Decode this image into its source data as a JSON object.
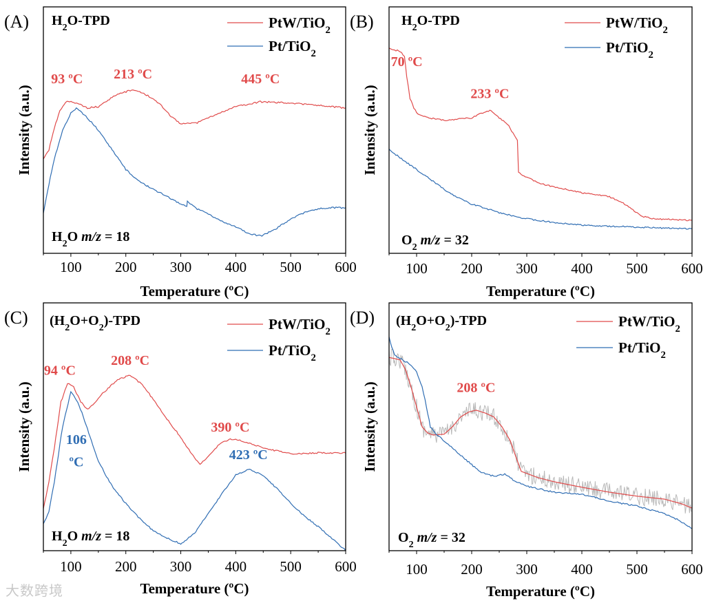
{
  "colors": {
    "ptw": "#e04a4a",
    "pt": "#2f6db3",
    "raw": "#b8b8b8",
    "axis": "#000000"
  },
  "watermark": "大数跨境",
  "chart_data": [
    {
      "type": "line",
      "panel": "(A)",
      "title": [
        {
          "t": "H"
        },
        {
          "t": "2",
          "sub": true
        },
        {
          "t": "O-TPD"
        }
      ],
      "note": [
        {
          "t": "H"
        },
        {
          "t": "2",
          "sub": true
        },
        {
          "t": "O "
        },
        {
          "t": "m/z",
          "i": true
        },
        {
          "t": " = 18"
        }
      ],
      "xlabel": "Temperature (ºC)",
      "ylabel": "Intensity (a.u.)",
      "xlim": [
        50,
        600
      ],
      "ylim": [
        0,
        100
      ],
      "xticks": [
        100,
        200,
        300,
        400,
        500,
        600
      ],
      "legend": [
        {
          "label": [
            {
              "t": "PtW/TiO"
            },
            {
              "t": "2",
              "sub": true
            }
          ],
          "series": "ptw"
        },
        {
          "label": [
            {
              "t": "Pt/TiO"
            },
            {
              "t": "2",
              "sub": true
            }
          ],
          "series": "pt"
        }
      ],
      "series": [
        {
          "name": "PtW/TiO2",
          "key": "ptw",
          "x": [
            50,
            60,
            70,
            80,
            93,
            110,
            130,
            150,
            180,
            213,
            240,
            260,
            280,
            300,
            330,
            360,
            400,
            445,
            500,
            550,
            600
          ],
          "y": [
            38,
            42,
            51,
            58,
            62,
            61,
            59,
            59.5,
            64,
            66.5,
            64,
            61,
            56,
            52.5,
            53,
            56,
            59.5,
            61.5,
            61,
            60,
            59
          ]
        },
        {
          "name": "Pt/TiO2",
          "key": "pt",
          "x": [
            50,
            60,
            70,
            85,
            100,
            110,
            130,
            150,
            175,
            200,
            225,
            250,
            275,
            300,
            311,
            312,
            330,
            350,
            375,
            400,
            425,
            445,
            470,
            500,
            525,
            550,
            575,
            600
          ],
          "y": [
            16,
            28,
            38.5,
            50,
            57,
            59,
            55,
            50,
            42,
            34,
            29,
            26,
            23,
            20,
            19,
            21,
            18,
            16,
            13,
            10.6,
            8,
            7,
            9.5,
            14,
            16.5,
            18,
            18.5,
            18.5
          ]
        }
      ],
      "annotations": [
        {
          "text": "93 ºC",
          "x": 93,
          "y": 69,
          "series": "ptw"
        },
        {
          "text": "213 ºC",
          "x": 213,
          "y": 71,
          "series": "ptw"
        },
        {
          "text": "445 ºC",
          "x": 445,
          "y": 69,
          "series": "ptw"
        }
      ]
    },
    {
      "type": "line",
      "panel": "(B)",
      "title": [
        {
          "t": "H"
        },
        {
          "t": "2",
          "sub": true
        },
        {
          "t": "O-TPD"
        }
      ],
      "note": [
        {
          "t": "O"
        },
        {
          "t": "2",
          "sub": true
        },
        {
          "t": " "
        },
        {
          "t": "m/z",
          "i": true
        },
        {
          "t": " = 32"
        }
      ],
      "xlabel": "Temperature (ºC)",
      "ylabel": "Intensity (a.u.)",
      "xlim": [
        50,
        600
      ],
      "ylim": [
        0,
        100
      ],
      "xticks": [
        100,
        200,
        300,
        400,
        500,
        600
      ],
      "legend": [
        {
          "label": [
            {
              "t": "PtW/TiO"
            },
            {
              "t": "2",
              "sub": true
            }
          ],
          "series": "ptw"
        },
        {
          "label": [
            {
              "t": "Pt/TiO"
            },
            {
              "t": "2",
              "sub": true
            }
          ],
          "series": "pt"
        }
      ],
      "series": [
        {
          "name": "PtW/TiO2",
          "key": "ptw",
          "x": [
            50,
            60,
            70,
            78,
            82,
            88,
            95,
            100,
            120,
            150,
            180,
            200,
            220,
            233,
            250,
            265,
            280,
            283,
            285,
            300,
            330,
            350,
            400,
            430,
            450,
            470,
            490,
            510,
            530,
            560,
            600
          ],
          "y": [
            83,
            82.5,
            82,
            80,
            72,
            63,
            59,
            57,
            55,
            54,
            54.5,
            55,
            57,
            58,
            55,
            52.5,
            47,
            46,
            33,
            30.7,
            28,
            27,
            24.6,
            23.8,
            23,
            21,
            18,
            15,
            14,
            13.8,
            13.4
          ]
        },
        {
          "name": "Pt/TiO2",
          "key": "pt",
          "x": [
            50,
            75,
            100,
            125,
            150,
            175,
            200,
            250,
            300,
            350,
            400,
            450,
            500,
            550,
            600
          ],
          "y": [
            42,
            38,
            34,
            30,
            26,
            22.5,
            20,
            16.5,
            14,
            12.5,
            11.5,
            11,
            10.6,
            10.3,
            10
          ]
        }
      ],
      "annotations": [
        {
          "text": "70 ºC",
          "x": 82,
          "y": 76,
          "series": "ptw"
        },
        {
          "text": "233 ºC",
          "x": 233,
          "y": 63,
          "series": "ptw"
        }
      ]
    },
    {
      "type": "line",
      "panel": "(C)",
      "title": [
        {
          "t": "(H"
        },
        {
          "t": "2",
          "sub": true
        },
        {
          "t": "O+O"
        },
        {
          "t": "2",
          "sub": true
        },
        {
          "t": ")-TPD"
        }
      ],
      "note": [
        {
          "t": "H"
        },
        {
          "t": "2",
          "sub": true
        },
        {
          "t": "O "
        },
        {
          "t": "m/z",
          "i": true
        },
        {
          "t": " = 18"
        }
      ],
      "xlabel": "Temperature (ºC)",
      "ylabel": "Intensity (a.u.)",
      "xlim": [
        50,
        600
      ],
      "ylim": [
        0,
        100
      ],
      "xticks": [
        100,
        200,
        300,
        400,
        500,
        600
      ],
      "legend": [
        {
          "label": [
            {
              "t": "PtW/TiO"
            },
            {
              "t": "2",
              "sub": true
            }
          ],
          "series": "ptw"
        },
        {
          "label": [
            {
              "t": "Pt/TiO"
            },
            {
              "t": "2",
              "sub": true
            }
          ],
          "series": "pt"
        }
      ],
      "series": [
        {
          "name": "PtW/TiO2",
          "key": "ptw",
          "x": [
            50,
            60,
            70,
            82,
            94,
            105,
            118,
            130,
            145,
            160,
            185,
            208,
            230,
            250,
            275,
            300,
            320,
            335,
            350,
            370,
            390,
            410,
            430,
            460,
            500,
            550,
            600
          ],
          "y": [
            16.7,
            28,
            41.7,
            60,
            67.5,
            66,
            60,
            57,
            60,
            64,
            69,
            70.8,
            67,
            61,
            53,
            45.8,
            39,
            34.7,
            38,
            43,
            45,
            44.5,
            43,
            41,
            39,
            39.5,
            39.4
          ]
        },
        {
          "name": "Pt/TiO2",
          "key": "pt",
          "x": [
            50,
            60,
            70,
            85,
            100,
            110,
            120,
            135,
            150,
            175,
            200,
            225,
            250,
            275,
            300,
            325,
            350,
            375,
            400,
            423,
            450,
            475,
            500,
            525,
            550,
            575,
            600
          ],
          "y": [
            10.6,
            16,
            28,
            50,
            64,
            61,
            55.6,
            46,
            36,
            26,
            19,
            13,
            8,
            5,
            2.8,
            7,
            15,
            23,
            30.5,
            33,
            30.5,
            25,
            19,
            14,
            9.7,
            5,
            0
          ]
        }
      ],
      "annotations": [
        {
          "text": "94 ºC",
          "x": 80,
          "y": 71,
          "series": "ptw"
        },
        {
          "text": "208 ºC",
          "x": 208,
          "y": 75,
          "series": "ptw"
        },
        {
          "text": "390 ºC",
          "x": 390,
          "y": 48,
          "series": "ptw"
        },
        {
          "text": "106",
          "x": 110,
          "y": 43,
          "series": "pt"
        },
        {
          "text": "ºC",
          "x": 110,
          "y": 34,
          "series": "pt"
        },
        {
          "text": "423 ºC",
          "x": 423,
          "y": 37,
          "series": "pt"
        }
      ]
    },
    {
      "type": "line",
      "panel": "(D)",
      "title": [
        {
          "t": "(H"
        },
        {
          "t": "2",
          "sub": true
        },
        {
          "t": "O+O"
        },
        {
          "t": "2",
          "sub": true
        },
        {
          "t": ")-TPD"
        }
      ],
      "note": [
        {
          "t": "O"
        },
        {
          "t": "2",
          "sub": true
        },
        {
          "t": " "
        },
        {
          "t": "m/z",
          "i": true
        },
        {
          "t": " = 32"
        }
      ],
      "xlabel": "Temperature (ºC)",
      "ylabel": "Intensity (a.u.)",
      "xlim": [
        50,
        600
      ],
      "ylim": [
        0,
        100
      ],
      "xticks": [
        100,
        200,
        300,
        400,
        500,
        600
      ],
      "legend": [
        {
          "label": [
            {
              "t": "PtW/TiO"
            },
            {
              "t": "2",
              "sub": true
            }
          ],
          "series": "ptw"
        },
        {
          "label": [
            {
              "t": "Pt/TiO"
            },
            {
              "t": "2",
              "sub": true
            }
          ],
          "series": "pt"
        }
      ],
      "series": [
        {
          "name": "PtW/TiO2",
          "key": "ptw",
          "raw": true,
          "x": [
            50,
            60,
            70,
            80,
            90,
            100,
            110,
            120,
            130,
            150,
            165,
            180,
            195,
            208,
            225,
            240,
            255,
            270,
            280,
            290,
            320,
            350,
            400,
            450,
            500,
            550,
            580,
            600
          ],
          "y": [
            78,
            77.5,
            77,
            73,
            66,
            58,
            50,
            47.5,
            46.7,
            47,
            50,
            54,
            56,
            56.7,
            55.5,
            54,
            50,
            44.4,
            38,
            32,
            29.5,
            27.8,
            25.6,
            23.6,
            22,
            20.8,
            19,
            17.2
          ]
        },
        {
          "name": "Pt/TiO2",
          "key": "pt",
          "x": [
            50,
            55,
            60,
            75,
            90,
            100,
            110,
            118,
            125,
            135,
            150,
            175,
            200,
            215,
            230,
            245,
            260,
            280,
            300,
            350,
            400,
            450,
            500,
            525,
            550,
            575,
            600
          ],
          "y": [
            86,
            82,
            79,
            77,
            75,
            72,
            66,
            58,
            50,
            47,
            44.4,
            39.5,
            34.7,
            32,
            30.5,
            30,
            31,
            27.8,
            26,
            23.6,
            22.8,
            20,
            18,
            16.5,
            15,
            12.5,
            8.9
          ]
        }
      ],
      "annotations": [
        {
          "text": "208 ºC",
          "x": 208,
          "y": 64,
          "series": "ptw"
        }
      ]
    }
  ]
}
